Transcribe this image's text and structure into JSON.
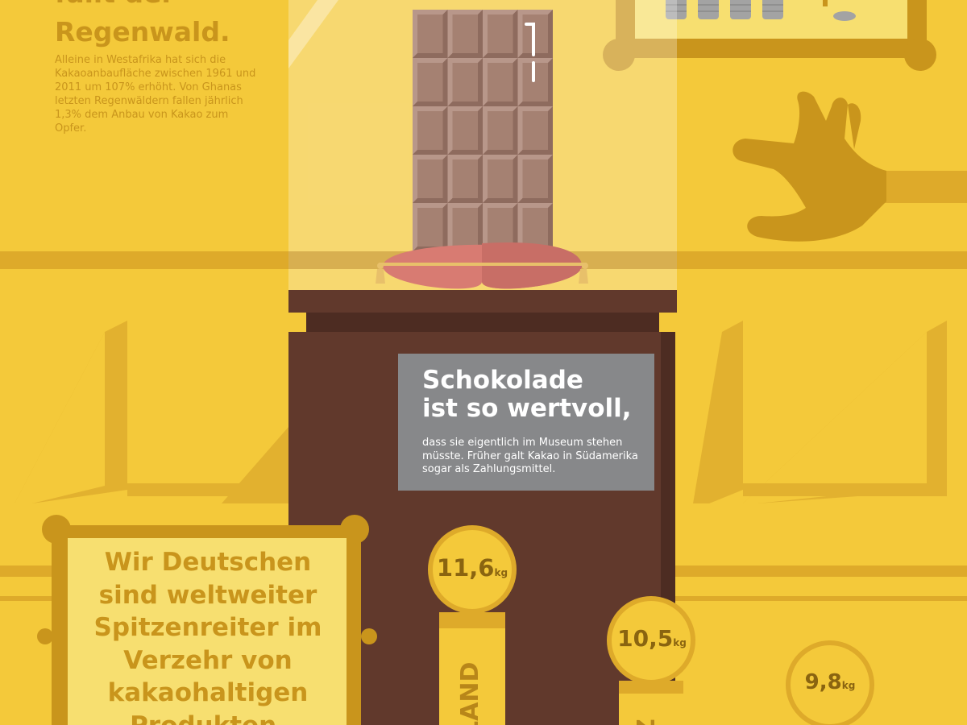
{
  "rainforest": {
    "heading_cut": "fällt der",
    "heading": "Regenwald.",
    "body": "Alleine in Westafrika hat sich die Kakaoanbaufläche zwischen 1961 und 2011 um 107% erhöht. Von Ghanas letzten Regenwäldern fallen jährlich 1,3% dem Anbau von Kakao zum Opfer."
  },
  "sign": {
    "title": "Schokolade\nist so wertvoll,",
    "body": "dass sie eigentlich im Museum stehen müsste. Früher galt Kakao in Südamerika sogar als Zahlungsmittel."
  },
  "frame": {
    "text": "Wir Deutschen sind weltweiter Spitzenreiter im Verzehr von kakaohaltigen Produkten."
  },
  "ranking": {
    "unit": "kg",
    "medals": [
      {
        "value": "11,6",
        "country_visible": "LAND"
      },
      {
        "value": "10,5",
        "country_visible": "Z"
      },
      {
        "value": "9,8",
        "country_visible": ""
      }
    ]
  },
  "colors": {
    "background": "#f4c93a",
    "accent": "#c9951c",
    "chocolate": "#a58172",
    "pedestal": "#61392c",
    "sign": "#87888a"
  }
}
